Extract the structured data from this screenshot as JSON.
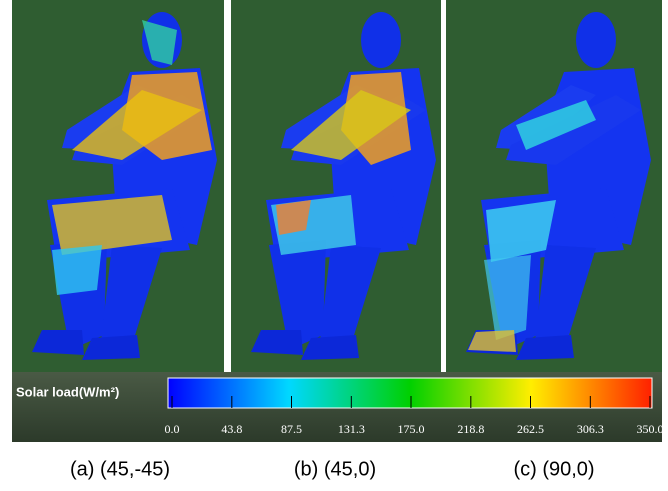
{
  "panels": [
    {
      "caption": "(a) (45,-45)"
    },
    {
      "caption": "(b) (45,0)"
    },
    {
      "caption": "(c) (90,0)"
    }
  ],
  "colorbar": {
    "label": "Solar load(W/m²)",
    "range": [
      0,
      350
    ],
    "ticks": [
      {
        "value": 0,
        "label": "0.0"
      },
      43.8,
      87.5,
      131.3,
      {
        "value": 175,
        "label": "175.0"
      },
      218.8,
      262.5,
      306.3,
      {
        "value": 350,
        "label": "350.0"
      }
    ]
  }
}
